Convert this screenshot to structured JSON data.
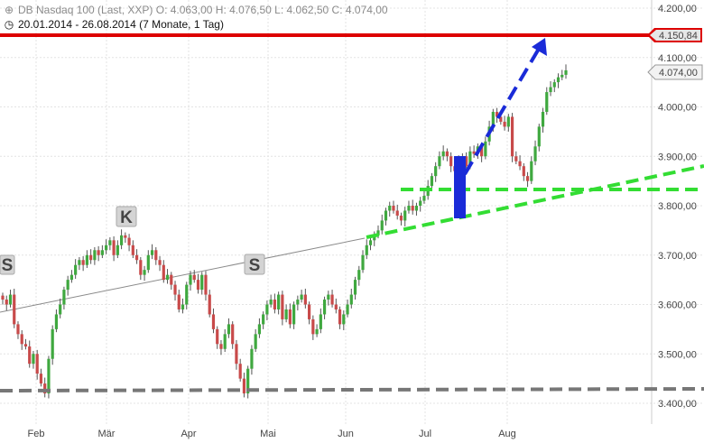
{
  "header": {
    "line1": "DB Nasdaq 100 (Last, XXP)  O: 4.063,00  H: 4.076,50  L: 4.062,50  C: 4.074,00",
    "line2": "20.01.2014 - 26.08.2014 (7 Monate, 1 Tag)"
  },
  "chart_data": {
    "type": "candlestick",
    "x_ticks": [
      "Feb",
      "Mär",
      "Apr",
      "Mai",
      "Jun",
      "Jul",
      "Aug"
    ],
    "y_ticks": [
      {
        "value": 3400,
        "label": "3.400,00"
      },
      {
        "value": 3500,
        "label": "3.500,00"
      },
      {
        "value": 3600,
        "label": "3.600,00"
      },
      {
        "value": 3700,
        "label": "3.700,00"
      },
      {
        "value": 3800,
        "label": "3.800,00"
      },
      {
        "value": 3900,
        "label": "3.900,00"
      },
      {
        "value": 4000,
        "label": "4.000,00"
      },
      {
        "value": 4100,
        "label": "4.100,00"
      },
      {
        "value": 4200,
        "label": "4.200,00"
      }
    ],
    "ylim": [
      3380,
      4220
    ],
    "price_labels": [
      {
        "value": 4150.84,
        "label": "4.150,84",
        "color": "#dd0000"
      },
      {
        "value": 4074.0,
        "label": "4.074,00",
        "color": "#999999"
      }
    ],
    "ohlc_summary": {
      "open": 4063.0,
      "high": 4076.5,
      "low": 4062.5,
      "close": 4074.0
    },
    "closes": [
      3610,
      3600,
      3620,
      3560,
      3540,
      3520,
      3515,
      3480,
      3500,
      3460,
      3440,
      3420,
      3490,
      3550,
      3580,
      3600,
      3630,
      3650,
      3660,
      3680,
      3690,
      3680,
      3700,
      3690,
      3710,
      3700,
      3710,
      3720,
      3730,
      3700,
      3720,
      3740,
      3735,
      3720,
      3700,
      3690,
      3660,
      3670,
      3700,
      3710,
      3690,
      3680,
      3650,
      3660,
      3640,
      3620,
      3590,
      3600,
      3640,
      3660,
      3650,
      3630,
      3660,
      3620,
      3580,
      3550,
      3520,
      3510,
      3540,
      3560,
      3520,
      3480,
      3450,
      3420,
      3470,
      3510,
      3540,
      3560,
      3580,
      3600,
      3610,
      3590,
      3620,
      3570,
      3590,
      3560,
      3600,
      3610,
      3620,
      3600,
      3570,
      3540,
      3550,
      3580,
      3610,
      3620,
      3600,
      3590,
      3560,
      3580,
      3600,
      3620,
      3650,
      3670,
      3700,
      3720,
      3730,
      3740,
      3750,
      3770,
      3790,
      3800,
      3790,
      3780,
      3770,
      3790,
      3800,
      3790,
      3800,
      3810,
      3820,
      3840,
      3860,
      3880,
      3900,
      3910,
      3900,
      3880,
      3870,
      3890,
      3900,
      3880,
      3910,
      3905,
      3920,
      3900,
      3930,
      3960,
      3990,
      3980,
      3970,
      3960,
      3980,
      3900,
      3890,
      3880,
      3860,
      3850,
      3890,
      3920,
      3960,
      3990,
      4030,
      4040,
      4050,
      4060,
      4065,
      4074
    ],
    "levels": [
      {
        "type": "resistance",
        "value": 4150.84,
        "color": "#dd0000"
      },
      {
        "type": "support",
        "value": 3840,
        "color": "#33dd33"
      },
      {
        "type": "support",
        "value": 3432,
        "color": "#777777"
      }
    ],
    "annotations": [
      "S",
      "K",
      "S"
    ]
  }
}
